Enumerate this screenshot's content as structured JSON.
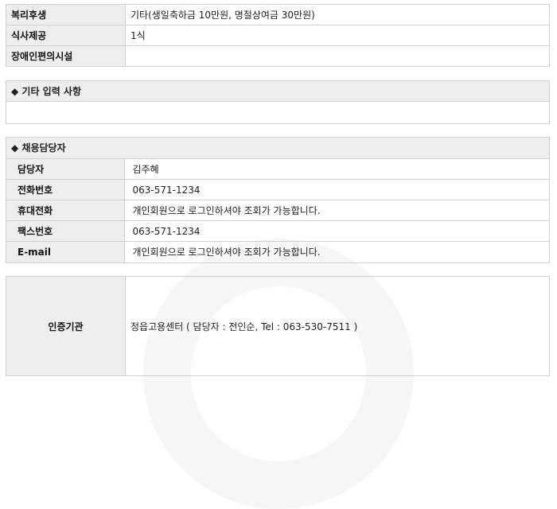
{
  "benefits": [
    {
      "label": "복리후생",
      "value": "기타(생일축하금 10만원, 명절상여금 30만원)"
    },
    {
      "label": "식사제공",
      "value": "1식"
    },
    {
      "label": "장애인편의시설",
      "value": ""
    }
  ],
  "other": {
    "title": "◆ 기타 입력 사항",
    "content": ""
  },
  "contact": {
    "title": "◆ 채용담당자",
    "rows": [
      {
        "label": "담당자",
        "value": "김주혜"
      },
      {
        "label": "전화번호",
        "value": "063-571-1234"
      },
      {
        "label": "휴대전화",
        "value": "개인회원으로 로그인하셔야 조회가 가능합니다."
      },
      {
        "label": "팩스번호",
        "value": "063-571-1234"
      },
      {
        "label": "E-mail",
        "value": "개인회원으로 로그인하셔야 조회가 가능합니다."
      }
    ]
  },
  "certification": {
    "label": "인증기관",
    "value": "정읍고용센터 ( 담당자 : 전인순, Tel : 063-530-7511 )"
  }
}
